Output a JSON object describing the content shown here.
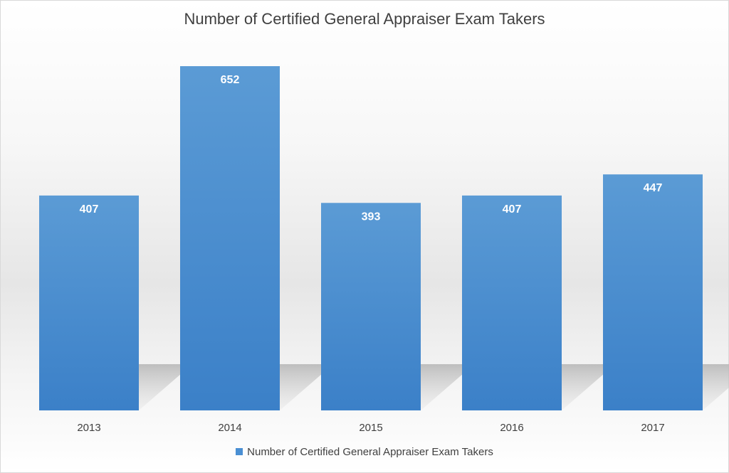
{
  "chart_data": {
    "type": "bar",
    "title": "Number of Certified General Appraiser Exam Takers",
    "categories": [
      "2013",
      "2014",
      "2015",
      "2016",
      "2017"
    ],
    "series": [
      {
        "name": "Number of Certified General Appraiser Exam Takers",
        "values": [
          407,
          652,
          393,
          407,
          447
        ]
      }
    ],
    "data_labels": [
      "407",
      "652",
      "393",
      "407",
      "447"
    ],
    "ylim": [
      0,
      700
    ],
    "grid": false,
    "legend": "bottom",
    "bar_color": "#4a8fd3",
    "bar_color_top": "#5b9bd5",
    "bar_color_bottom": "#3b80c8"
  }
}
